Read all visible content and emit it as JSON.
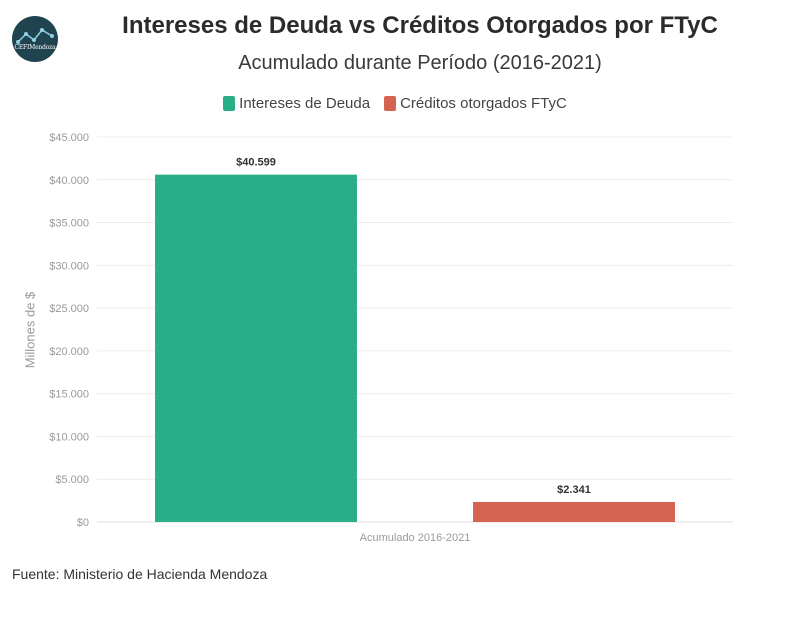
{
  "logo": {
    "text": "CEFIMendoza"
  },
  "colors": {
    "intereses": "#2aae87",
    "creditos": "#d46352"
  },
  "footer": "Fuente: Ministerio de Hacienda Mendoza",
  "chart_data": {
    "type": "bar",
    "title": "Intereses de Deuda vs Créditos Otorgados por FTyC",
    "subtitle": "Acumulado durante Período (2016-2021)",
    "xlabel": "",
    "ylabel": "Millones de $",
    "categories": [
      "Acumulado 2016-2021"
    ],
    "series": [
      {
        "name": "Intereses de Deuda",
        "values": [
          40599
        ],
        "label": "$40.599",
        "color": "#2aae87"
      },
      {
        "name": "Créditos otorgados FTyC",
        "values": [
          2341
        ],
        "label": "$2.341",
        "color": "#d46352"
      }
    ],
    "ylim": [
      0,
      45000
    ],
    "yticks": [
      0,
      5000,
      10000,
      15000,
      20000,
      25000,
      30000,
      35000,
      40000,
      45000
    ],
    "ytick_labels": [
      "$0",
      "$5.000",
      "$10.000",
      "$15.000",
      "$20.000",
      "$25.000",
      "$30.000",
      "$35.000",
      "$40.000",
      "$45.000"
    ],
    "grid": true,
    "legend": "top-center"
  }
}
